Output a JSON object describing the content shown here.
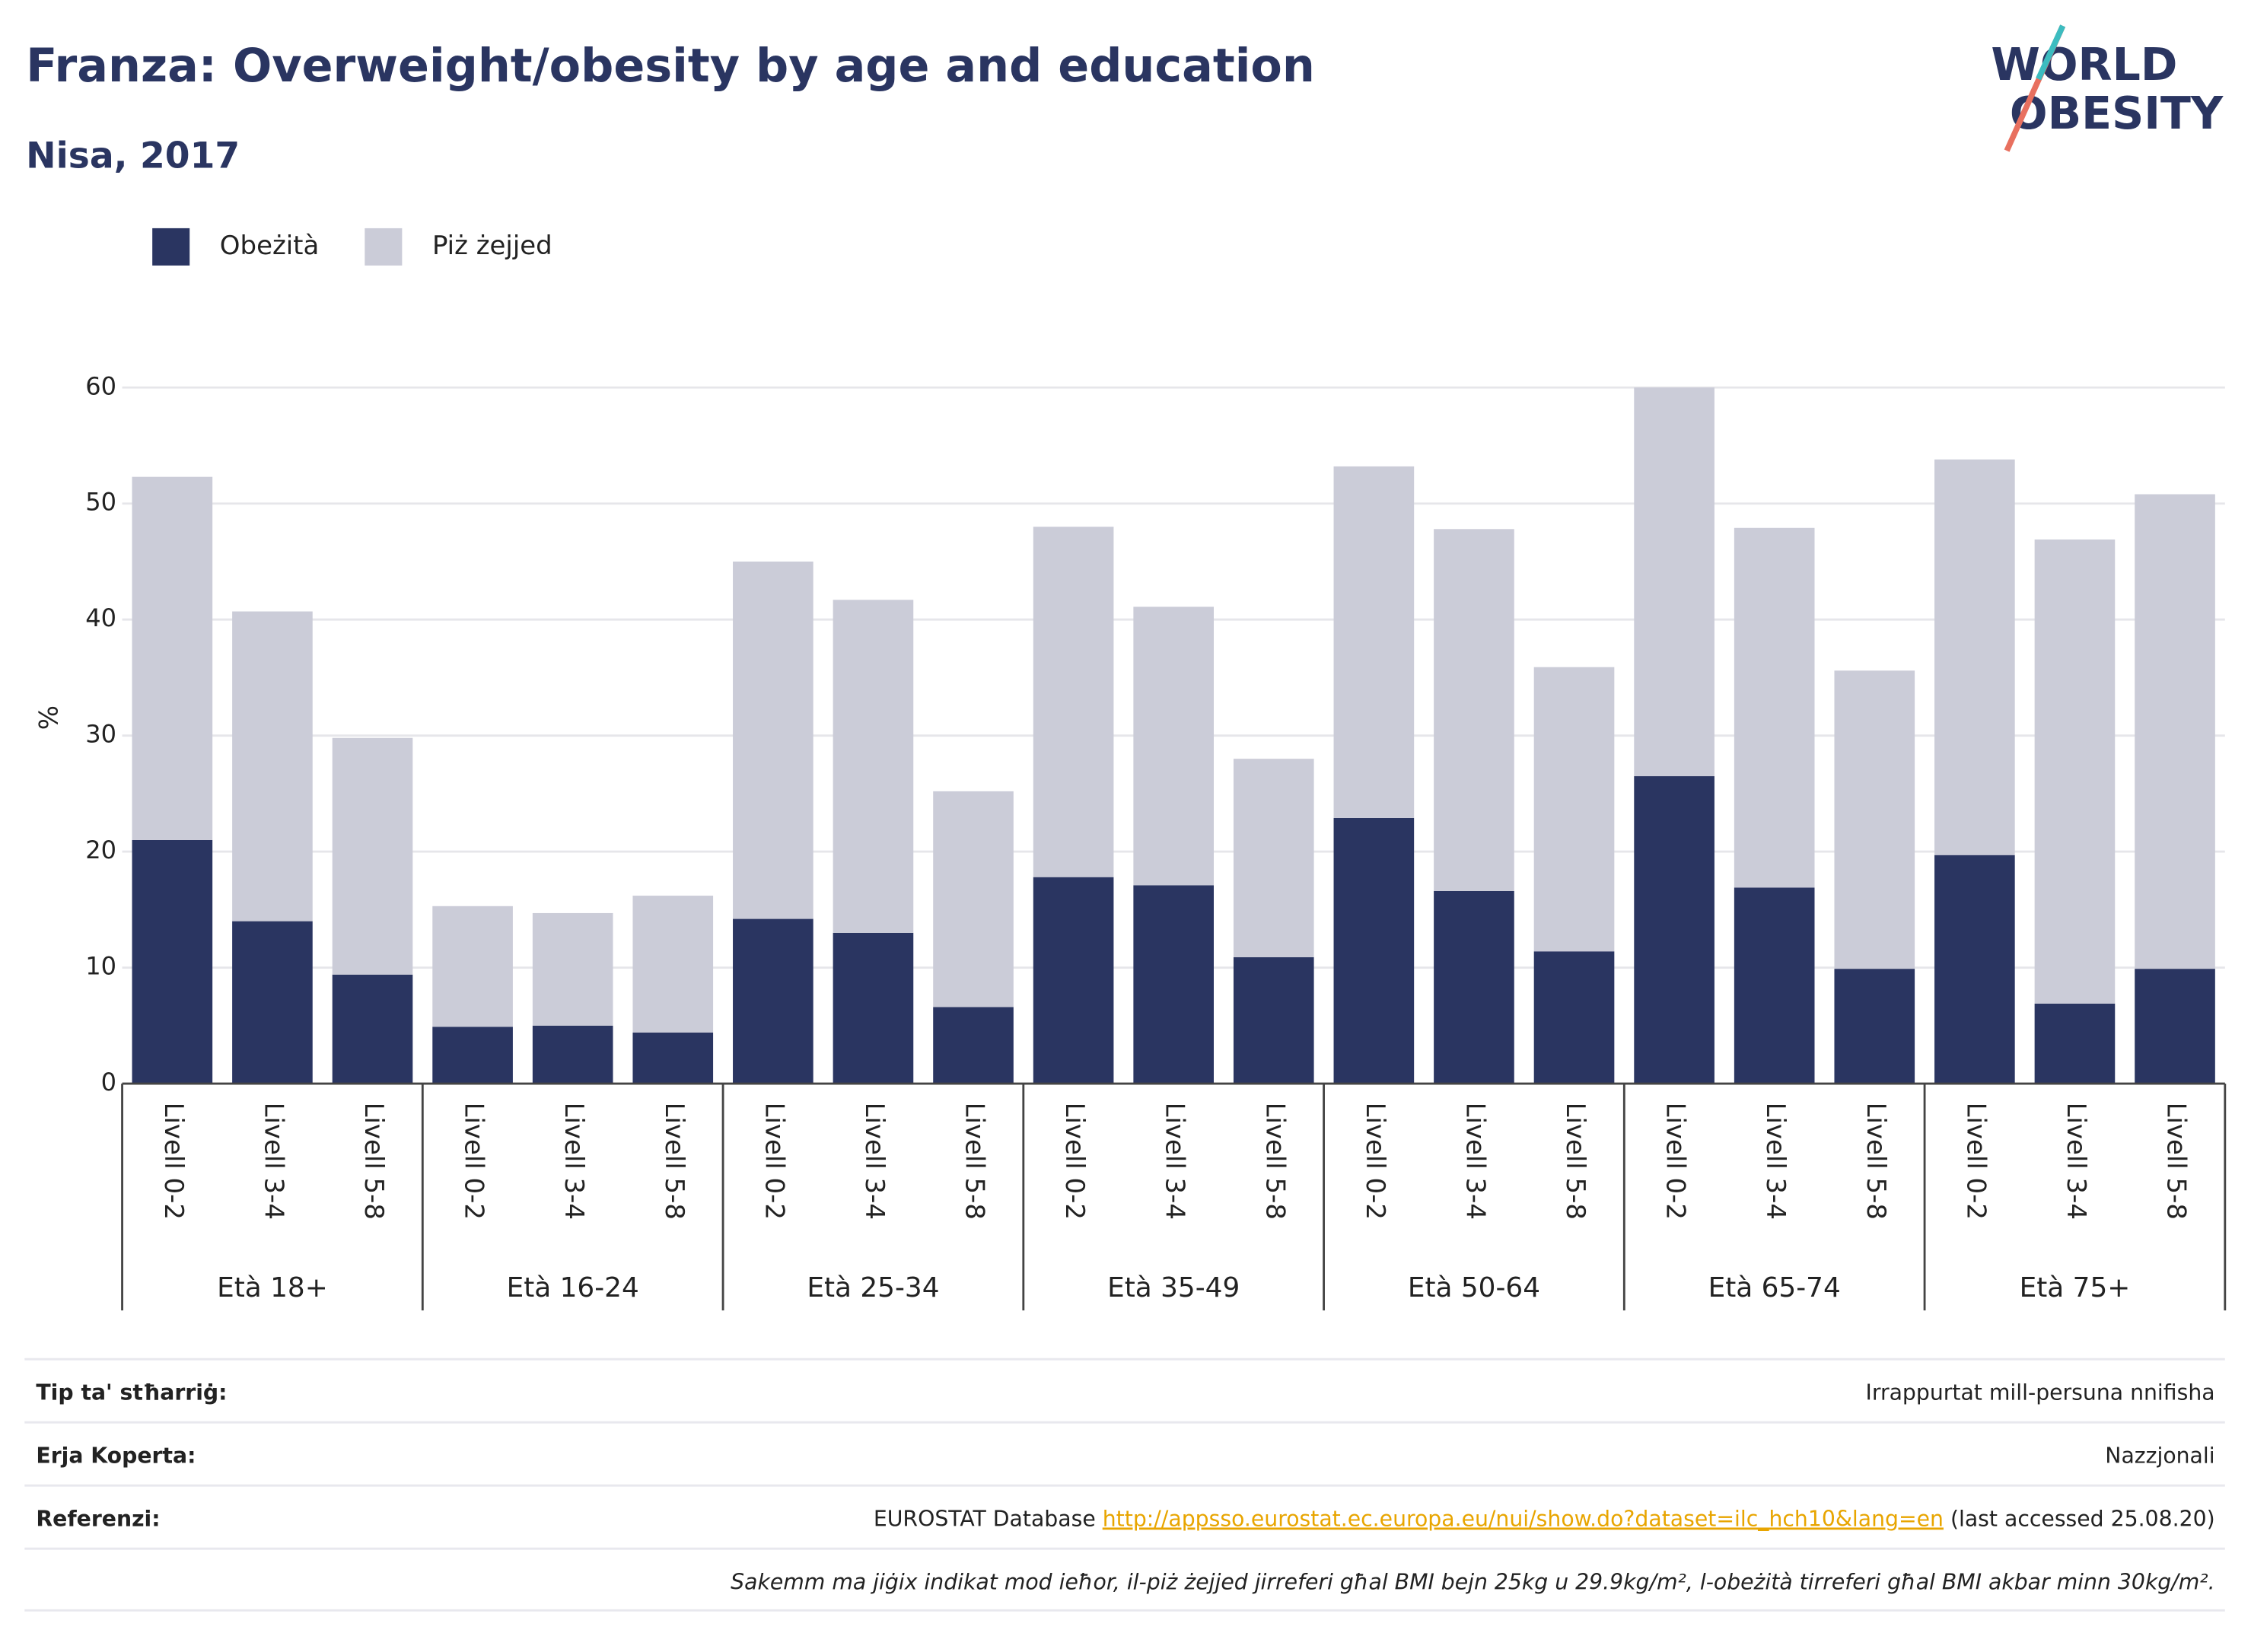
{
  "chart_data": {
    "type": "stacked_bar",
    "title": "Franza: Overweight/obesity by age and education",
    "subtitle": "Nisa, 2017",
    "y_label": "%",
    "logo": [
      "WORLD",
      "OBESITY"
    ],
    "categories": [
      "Livell 0-2",
      "Livell 3-4",
      "Livell 5-8",
      "Livell 0-2",
      "Livell 3-4",
      "Livell 5-8",
      "Livell 0-2",
      "Livell 3-4",
      "Livell 5-8",
      "Livell 0-2",
      "Livell 3-4",
      "Livell 5-8",
      "Livell 0-2",
      "Livell 3-4",
      "Livell 5-8",
      "Livell 0-2",
      "Livell 3-4",
      "Livell 5-8",
      "Livell 0-2",
      "Livell 3-4",
      "Livell 5-8"
    ],
    "groups": [
      "Età 18+",
      "Età 16-24",
      "Età 25-34",
      "Età 35-49",
      "Età 50-64",
      "Età 65-74",
      "Età 75+"
    ],
    "series": [
      {
        "name": "Obeżità",
        "color": "#2a3561",
        "values": [
          21.0,
          14.0,
          9.4,
          4.9,
          5.0,
          4.4,
          14.2,
          13.0,
          6.6,
          17.8,
          17.1,
          10.9,
          22.9,
          16.6,
          11.4,
          26.5,
          16.9,
          9.9,
          19.7,
          6.9,
          9.9
        ]
      },
      {
        "name": "Piż żejjed",
        "color": "#cbccd8",
        "values": [
          31.3,
          26.7,
          20.4,
          10.4,
          9.7,
          11.8,
          30.8,
          28.7,
          18.6,
          30.2,
          24.0,
          17.1,
          30.3,
          31.2,
          24.5,
          33.5,
          31.0,
          25.7,
          34.1,
          40.0,
          40.9
        ]
      }
    ],
    "ylim": [
      0,
      60
    ],
    "yticks": [
      0,
      10,
      20,
      30,
      40,
      50,
      60
    ],
    "grid": true,
    "legend": "top-left"
  },
  "footer": {
    "rows": [
      {
        "label": "Tip ta' stħarriġ:",
        "value": "Irrappurtat mill-persuna nnifisha"
      },
      {
        "label": "Erja Koperta:",
        "value": "Nazzjonali"
      },
      {
        "label": "Referenzi:",
        "value": "EUROSTAT Database ",
        "link": "http://appsso.eurostat.ec.europa.eu/nui/show.do?dataset=ilc_hch10&lang=en",
        "suffix": " (last accessed 25.08.20)"
      }
    ],
    "note": "Sakemm ma jiġix indikat mod ieħor, il-piż żejjed jirreferi għal BMI bejn 25kg u 29.9kg/m², l-obeżità tirreferi għal BMI akbar minn 30kg/m²."
  }
}
